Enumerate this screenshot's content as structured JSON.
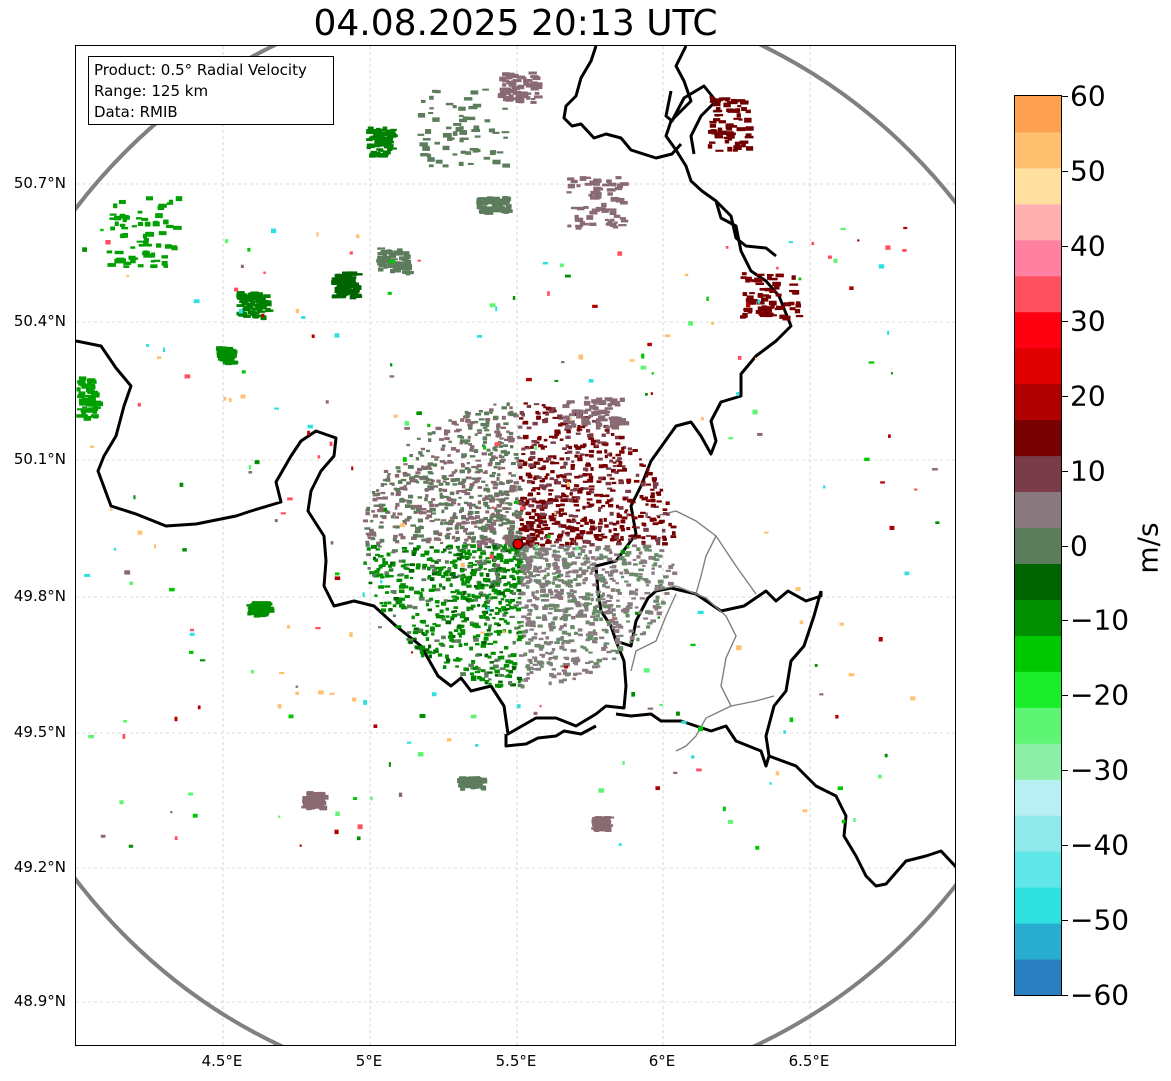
{
  "title": "04.08.2025 20:13 UTC",
  "info": {
    "product": "Product: 0.5° Radial Velocity",
    "range": "Range: 125 km",
    "data": "Data: RMIB"
  },
  "axes": {
    "lat_labels": [
      "50.7°N",
      "50.4°N",
      "50.1°N",
      "49.8°N",
      "49.5°N",
      "49.2°N",
      "48.9°N"
    ],
    "lat_values": [
      50.7,
      50.4,
      50.1,
      49.8,
      49.5,
      49.2,
      48.9
    ],
    "lon_labels": [
      "4.5°E",
      "5°E",
      "5.5°E",
      "6°E",
      "6.5°E"
    ],
    "lon_values": [
      4.5,
      5.0,
      5.5,
      6.0,
      6.5
    ],
    "lon_range": [
      4.0,
      7.0
    ],
    "lat_range": [
      48.8,
      51.0
    ]
  },
  "radar_site": {
    "lon": 5.5,
    "lat": 49.91
  },
  "colorbar": {
    "unit": "m/s",
    "labels": [
      "60",
      "50",
      "40",
      "30",
      "20",
      "10",
      "0",
      "−10",
      "−20",
      "−30",
      "−40",
      "−50",
      "−60"
    ],
    "values": [
      60,
      50,
      40,
      30,
      20,
      10,
      0,
      -10,
      -20,
      -30,
      -40,
      -50,
      -60
    ],
    "range": [
      -60,
      60
    ],
    "colors": [
      "#2a7fc0",
      "#2aaed0",
      "#2fe0e0",
      "#60e6e6",
      "#8fe8ea",
      "#b8eff2",
      "#8cf0a6",
      "#5ef575",
      "#1aee2a",
      "#00c800",
      "#008f00",
      "#006400",
      "#5c7c5c",
      "#8a7a80",
      "#7a3c48",
      "#780000",
      "#b00000",
      "#e00000",
      "#ff0010",
      "#ff5060",
      "#ff80a0",
      "#ffb0b0",
      "#ffe0a0",
      "#ffc070",
      "#ffa050"
    ],
    "lat_grid_color": "#bbbbbb"
  }
}
